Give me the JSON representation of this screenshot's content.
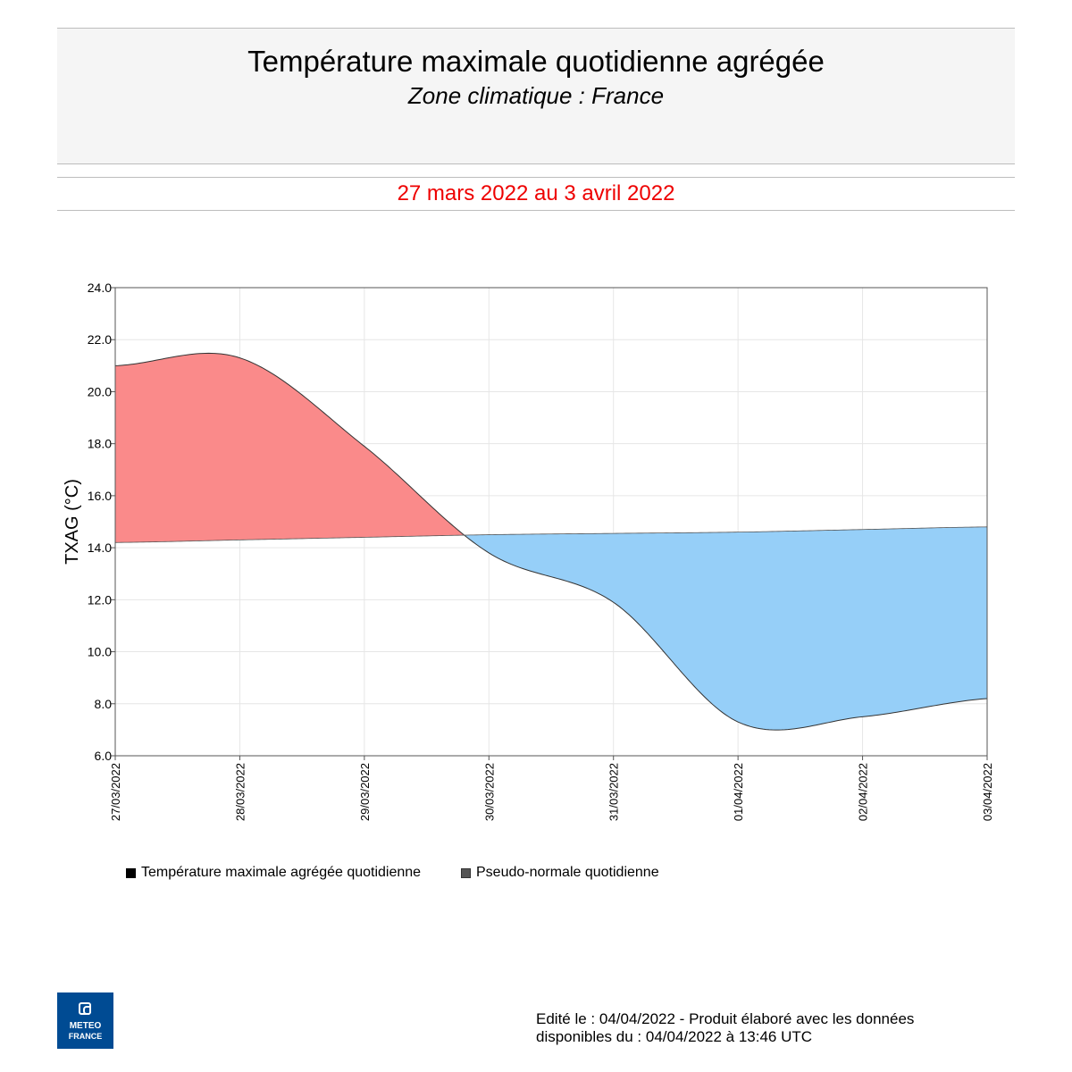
{
  "header": {
    "title": "Température maximale quotidienne agrégée",
    "subtitle": "Zone climatique : France",
    "period": "27 mars 2022 au 3 avril 2022"
  },
  "colors": {
    "above_normal": "#fa8a8a",
    "below_normal": "#96cff8",
    "period_text": "#ee0000",
    "logo_bg": "#004b93"
  },
  "chart_data": {
    "type": "area",
    "ylabel": "TXAG (°C)",
    "ylim": [
      6.0,
      24.0
    ],
    "yticks": [
      "6.0",
      "8.0",
      "10.0",
      "12.0",
      "14.0",
      "16.0",
      "18.0",
      "20.0",
      "22.0",
      "24.0"
    ],
    "categories": [
      "27/03/2022",
      "28/03/2022",
      "29/03/2022",
      "30/03/2022",
      "31/03/2022",
      "01/04/2022",
      "02/04/2022",
      "03/04/2022"
    ],
    "grid": true,
    "legend_position": "bottom-left",
    "series": [
      {
        "name": "Température maximale agrégée quotidienne",
        "values": [
          21.0,
          21.3,
          17.9,
          13.8,
          11.9,
          7.3,
          7.5,
          8.2
        ]
      },
      {
        "name": "Pseudo-normale quotidienne",
        "values": [
          14.2,
          14.3,
          14.4,
          14.5,
          14.55,
          14.6,
          14.7,
          14.8
        ]
      }
    ]
  },
  "footer": {
    "line1": "Edité le : 04/04/2022 - Produit élaboré avec les données",
    "line2": "disponibles du : 04/04/2022 à 13:46 UTC"
  },
  "logo": {
    "line1": "METEO",
    "line2": "FRANCE"
  }
}
